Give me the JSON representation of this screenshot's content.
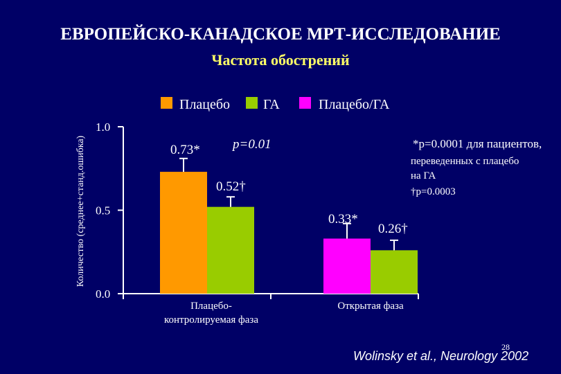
{
  "header": {
    "title": "ЕВРОПЕЙСКО-КАНАДСКОЕ МРТ-ИССЛЕДОВАНИЕ",
    "subtitle": "Частота обострений"
  },
  "colors": {
    "background": "#000066",
    "placebo": "#ff9900",
    "ga": "#99cc00",
    "placebo_ga": "#ff00ff",
    "subtitle": "#ffff66"
  },
  "chart_data": {
    "type": "bar",
    "ylabel": "Количество (среднее+станд.ошибка)",
    "ylim": [
      0,
      1.0
    ],
    "yticks": [
      {
        "value": 0.0,
        "label": "0.0"
      },
      {
        "value": 0.5,
        "label": "0.5"
      },
      {
        "value": 1.0,
        "label": "1.0"
      }
    ],
    "legend": [
      {
        "label": "Плацебо",
        "color": "#ff9900"
      },
      {
        "label": "ГА",
        "color": "#99cc00"
      },
      {
        "label": "Плацебо/ГА",
        "color": "#ff00ff"
      }
    ],
    "groups": [
      {
        "category_lines": [
          "Плацебо-",
          "контролируемая фаза"
        ],
        "bars": [
          {
            "series": "Плацебо",
            "value": 0.73,
            "error": 0.08,
            "label": "0.73*",
            "color": "#ff9900"
          },
          {
            "series": "ГА",
            "value": 0.52,
            "error": 0.06,
            "label": "0.52†",
            "color": "#99cc00"
          }
        ]
      },
      {
        "category_lines": [
          "Открытая фаза"
        ],
        "bars": [
          {
            "series": "Плацебо/ГА",
            "value": 0.33,
            "error": 0.09,
            "label": "0.33*",
            "color": "#ff00ff"
          },
          {
            "series": "ГА",
            "value": 0.26,
            "error": 0.06,
            "label": "0.26†",
            "color": "#99cc00"
          }
        ]
      }
    ],
    "annotations": {
      "p_group1": "p=0.01",
      "note_lines": [
        "*p=0.0001 для пациентов,",
        "переведенных с плацебо",
        "на ГА",
        "†p=0.0003"
      ]
    }
  },
  "footer": {
    "citation": "Wolinsky et al., Neurology 2002",
    "page_number": "28"
  }
}
